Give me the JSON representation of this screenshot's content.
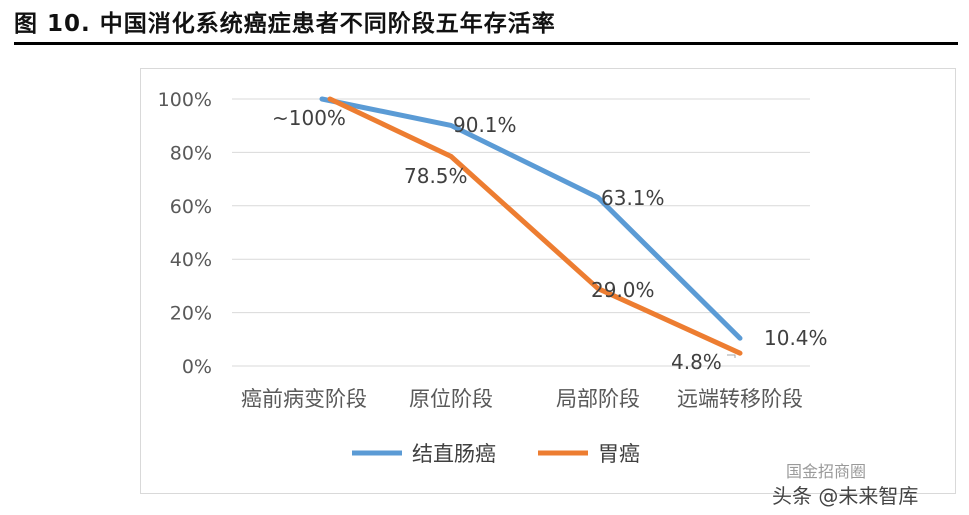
{
  "figure": {
    "title": "图 10. 中国消化系统癌症患者不同阶段五年存活率"
  },
  "watermark": {
    "line1": "国金招商圈",
    "line2": "头条 @未来智库"
  },
  "chart_data": {
    "type": "line",
    "categories": [
      "癌前病变阶段",
      "原位阶段",
      "局部阶段",
      "远端转移阶段"
    ],
    "ylim": [
      0,
      100
    ],
    "yticks": [
      0,
      20,
      40,
      60,
      80,
      100
    ],
    "ytick_labels": [
      "0%",
      "20%",
      "40%",
      "60%",
      "80%",
      "100%"
    ],
    "grid": true,
    "legend_position": "bottom",
    "series": [
      {
        "name": "结直肠癌",
        "color": "#5B9BD5",
        "values": [
          100,
          90.1,
          63.1,
          10.4
        ],
        "labels": [
          "",
          "90.1%",
          "63.1%",
          "10.4%"
        ]
      },
      {
        "name": "胃癌",
        "color": "#ED7D31",
        "values": [
          100,
          78.5,
          29.0,
          4.8
        ],
        "labels": [
          "~100%",
          "78.5%",
          "29.0%",
          "4.8%"
        ]
      }
    ]
  }
}
